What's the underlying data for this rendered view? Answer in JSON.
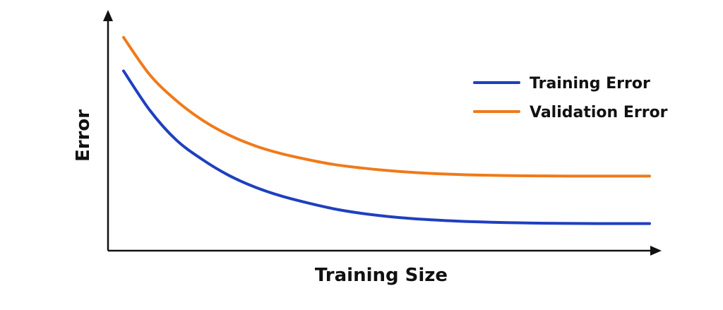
{
  "chart_data": {
    "type": "line",
    "title": "",
    "xlabel": "Training Size",
    "ylabel": "Error",
    "x_ticks_shown": false,
    "y_ticks_shown": false,
    "grid": false,
    "legend_position": "top-right",
    "xlim": [
      0,
      10
    ],
    "ylim": [
      0,
      10
    ],
    "x": [
      0,
      0.5,
      1,
      1.5,
      2,
      2.5,
      3,
      3.5,
      4,
      4.5,
      5,
      5.5,
      6,
      6.5,
      7,
      7.5,
      8,
      8.5,
      9,
      9.5,
      10
    ],
    "series": [
      {
        "name": "Training Error",
        "color": "#1f3fbf",
        "values": [
          8.3,
          6.3,
          4.8,
          3.8,
          3.0,
          2.4,
          1.95,
          1.6,
          1.3,
          1.08,
          0.92,
          0.8,
          0.72,
          0.66,
          0.62,
          0.59,
          0.57,
          0.56,
          0.55,
          0.55,
          0.55
        ]
      },
      {
        "name": "Validation Error",
        "color": "#f07a1a",
        "values": [
          10.0,
          8.1,
          6.8,
          5.8,
          5.05,
          4.5,
          4.1,
          3.8,
          3.55,
          3.38,
          3.25,
          3.15,
          3.08,
          3.03,
          3.0,
          2.98,
          2.97,
          2.96,
          2.96,
          2.96,
          2.96
        ]
      }
    ]
  }
}
